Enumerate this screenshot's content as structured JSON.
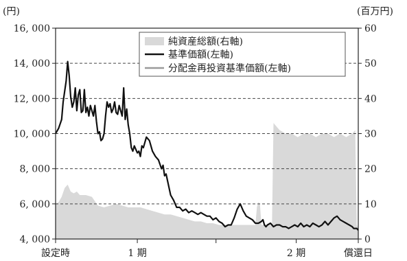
{
  "chart_data": {
    "type": "line",
    "left_axis": {
      "unit": "(円)",
      "min": 4000,
      "max": 16000,
      "ticks": [
        4000,
        6000,
        8000,
        10000,
        12000,
        14000,
        16000
      ],
      "tick_labels": [
        "4, 000",
        "6, 000",
        "8, 000",
        "10, 000",
        "12, 000",
        "14, 000",
        "16, 000"
      ]
    },
    "right_axis": {
      "unit": "(百万円)",
      "min": 0,
      "max": 60,
      "ticks": [
        0,
        10,
        20,
        30,
        40,
        50,
        60
      ],
      "tick_labels": [
        "0",
        "10",
        "20",
        "30",
        "40",
        "50",
        "60"
      ]
    },
    "x_categories": [
      {
        "label": "設定時",
        "pos": 0.0
      },
      {
        "label": "1 期",
        "pos": 0.27
      },
      {
        "label": "",
        "pos": 0.53
      },
      {
        "label": "2 期",
        "pos": 0.795
      },
      {
        "label": "償還日",
        "pos": 1.0
      }
    ],
    "grid": "horizontal-dashed",
    "legend_position": "top-right",
    "colors": {
      "net_assets": "#d9d9d9",
      "nav": "#111111",
      "reinvested_nav": "#9a9a9a"
    },
    "series": [
      {
        "name": "純資産総額(右軸)",
        "axis": "right",
        "kind": "area",
        "x": [
          0,
          0.01,
          0.02,
          0.03,
          0.04,
          0.05,
          0.06,
          0.07,
          0.08,
          0.1,
          0.12,
          0.14,
          0.16,
          0.18,
          0.2,
          0.22,
          0.24,
          0.26,
          0.28,
          0.3,
          0.32,
          0.34,
          0.36,
          0.38,
          0.4,
          0.42,
          0.44,
          0.46,
          0.48,
          0.5,
          0.52,
          0.54,
          0.56,
          0.58,
          0.6,
          0.62,
          0.64,
          0.65,
          0.66,
          0.665,
          0.67,
          0.675,
          0.68,
          0.69,
          0.7,
          0.71,
          0.715,
          0.72,
          0.73,
          0.74,
          0.76,
          0.78,
          0.8,
          0.82,
          0.84,
          0.86,
          0.88,
          0.9,
          0.92,
          0.94,
          0.96,
          0.98,
          0.99,
          0.995,
          1.0
        ],
        "values": [
          10,
          10.5,
          12,
          14.5,
          15.5,
          13.5,
          13,
          13.5,
          12.5,
          12.5,
          12,
          9.5,
          9,
          9.5,
          10,
          9.5,
          9,
          9,
          9,
          8.5,
          8,
          7.5,
          7,
          7,
          6.5,
          6,
          5.5,
          5,
          5,
          4.5,
          4.5,
          4,
          4,
          4,
          4,
          4,
          4,
          4,
          4,
          9,
          10.5,
          10,
          4,
          4,
          4,
          4,
          4,
          33,
          32,
          31,
          30,
          30,
          29,
          30,
          30,
          29,
          30,
          30,
          29,
          30,
          29,
          30,
          31,
          4,
          3
        ]
      },
      {
        "name": "基準価額(左軸)",
        "axis": "left",
        "kind": "line",
        "x": [
          0,
          0.01,
          0.02,
          0.025,
          0.03,
          0.035,
          0.04,
          0.045,
          0.05,
          0.055,
          0.06,
          0.065,
          0.07,
          0.075,
          0.08,
          0.085,
          0.09,
          0.095,
          0.1,
          0.105,
          0.11,
          0.115,
          0.12,
          0.125,
          0.13,
          0.135,
          0.14,
          0.145,
          0.15,
          0.155,
          0.16,
          0.165,
          0.17,
          0.175,
          0.18,
          0.185,
          0.19,
          0.195,
          0.2,
          0.205,
          0.21,
          0.215,
          0.22,
          0.225,
          0.23,
          0.235,
          0.24,
          0.245,
          0.25,
          0.255,
          0.26,
          0.27,
          0.275,
          0.28,
          0.285,
          0.29,
          0.3,
          0.31,
          0.32,
          0.33,
          0.34,
          0.35,
          0.355,
          0.36,
          0.365,
          0.37,
          0.38,
          0.39,
          0.4,
          0.41,
          0.42,
          0.43,
          0.44,
          0.45,
          0.46,
          0.47,
          0.48,
          0.49,
          0.5,
          0.51,
          0.52,
          0.53,
          0.54,
          0.55,
          0.56,
          0.57,
          0.58,
          0.59,
          0.6,
          0.61,
          0.62,
          0.63,
          0.64,
          0.65,
          0.66,
          0.67,
          0.68,
          0.685,
          0.69,
          0.695,
          0.7,
          0.71,
          0.72,
          0.73,
          0.74,
          0.75,
          0.76,
          0.77,
          0.78,
          0.79,
          0.8,
          0.81,
          0.82,
          0.83,
          0.84,
          0.85,
          0.86,
          0.87,
          0.88,
          0.89,
          0.9,
          0.91,
          0.92,
          0.93,
          0.94,
          0.95,
          0.96,
          0.97,
          0.98,
          0.985,
          0.99,
          0.995,
          1.0
        ],
        "values": [
          10000,
          10300,
          10800,
          11800,
          12400,
          13000,
          14100,
          13300,
          12100,
          11500,
          11800,
          12600,
          11300,
          12200,
          12500,
          11200,
          11300,
          12500,
          11200,
          11500,
          11000,
          11600,
          11300,
          11000,
          11600,
          10700,
          10000,
          10100,
          9600,
          9700,
          10000,
          11000,
          11800,
          11500,
          11700,
          11200,
          11400,
          11800,
          11200,
          11100,
          11600,
          11300,
          11000,
          12600,
          10800,
          11400,
          10500,
          10000,
          9200,
          9000,
          9300,
          8900,
          9000,
          8700,
          9300,
          9200,
          9800,
          9600,
          9000,
          8700,
          8500,
          8000,
          8200,
          7600,
          7700,
          7300,
          6500,
          6200,
          5800,
          5800,
          5600,
          5700,
          5500,
          5600,
          5500,
          5400,
          5500,
          5400,
          5300,
          5300,
          5100,
          5200,
          5000,
          4900,
          4700,
          4800,
          4800,
          5200,
          5700,
          6000,
          5600,
          5300,
          5200,
          5100,
          4900,
          4900,
          5000,
          5100,
          4800,
          4700,
          4800,
          4900,
          4700,
          4800,
          4800,
          4700,
          4700,
          4600,
          4700,
          4800,
          4700,
          4900,
          4700,
          4800,
          4700,
          4900,
          4800,
          4700,
          4800,
          5000,
          4800,
          5000,
          5200,
          5300,
          5100,
          5000,
          4900,
          4800,
          4700,
          4600,
          4600,
          4600,
          4500
        ]
      },
      {
        "name": "分配金再投資基準価額(左軸)",
        "axis": "left",
        "kind": "line",
        "x": [],
        "values": []
      }
    ]
  }
}
